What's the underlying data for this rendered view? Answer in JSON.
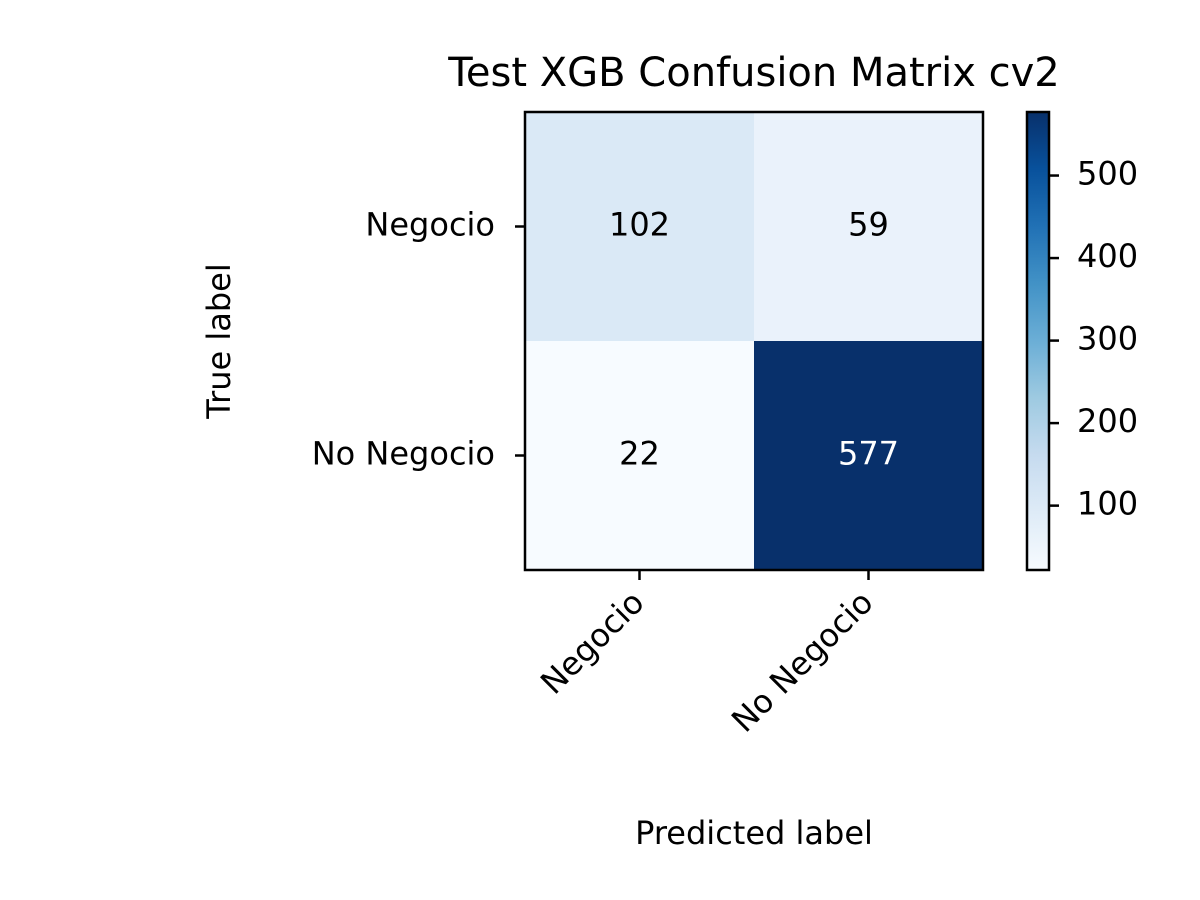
{
  "chart_data": {
    "type": "heatmap",
    "title": "Test XGB Confusion Matrix cv2",
    "xlabel": "Predicted label",
    "ylabel": "True label",
    "x_categories": [
      "Negocio",
      "No Negocio"
    ],
    "y_categories": [
      "Negocio",
      "No Negocio"
    ],
    "values": [
      [
        102,
        59
      ],
      [
        22,
        577
      ]
    ],
    "colormap": "Blues",
    "color_range": [
      22,
      577
    ],
    "colorbar_ticks": [
      100,
      200,
      300,
      400,
      500
    ],
    "colorbar_tick_labels": [
      "100",
      "200",
      "300",
      "400",
      "500"
    ],
    "grid": false,
    "legend": "colorbar-right"
  }
}
